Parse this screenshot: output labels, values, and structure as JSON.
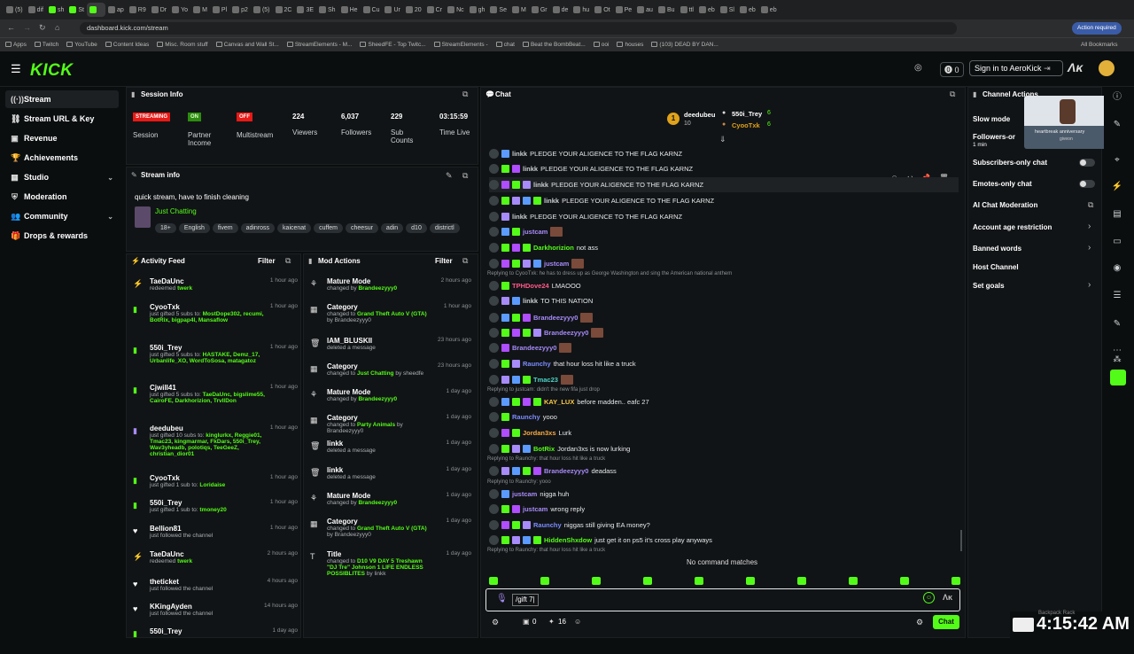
{
  "browser": {
    "tabs": [
      "(5)",
      "dif",
      "sh",
      "St",
      "",
      "ap",
      "R9",
      "Dr",
      "Yo",
      "M",
      "Pl",
      "p2",
      "(5)",
      "2C",
      "3E",
      "Sh",
      "He",
      "Cu",
      "Ur",
      "20",
      "Cr",
      "Nc",
      "gh",
      "Se",
      "M",
      "Gr",
      "de",
      "hu",
      "Ot",
      "Pe",
      "au",
      "Bu",
      "ttl",
      "eb",
      "Sl",
      "eb",
      "eb"
    ],
    "url": "dashboard.kick.com/stream",
    "action_required": "Action required",
    "bookmarks": [
      "Apps",
      "Twitch",
      "YouTube",
      "Content Ideas",
      "Misc. Room stuff",
      "Canvas and Wall St...",
      "StreamElements - M...",
      "SheedFE - Top Twitc...",
      "StreamElements -",
      "chat",
      "Beat the BombBeat...",
      "ooi",
      "houses",
      "(103) DEAD BY DAN..."
    ],
    "all_bookmarks": "All Bookmarks"
  },
  "header": {
    "logo": "KICK",
    "notifications_count": "0",
    "signin_label": "Sign in to AeroKick"
  },
  "sidebar": {
    "items": [
      {
        "label": "Stream",
        "icon": "broadcast-icon"
      },
      {
        "label": "Stream URL & Key",
        "icon": "link-icon"
      },
      {
        "label": "Revenue",
        "icon": "revenue-icon"
      },
      {
        "label": "Achievements",
        "icon": "trophy-icon"
      },
      {
        "label": "Studio",
        "icon": "studio-icon"
      },
      {
        "label": "Moderation",
        "icon": "shield-icon"
      },
      {
        "label": "Community",
        "icon": "community-icon"
      },
      {
        "label": "Drops & rewards",
        "icon": "gift-icon"
      }
    ]
  },
  "session": {
    "title": "Session Info",
    "streaming": "STREAMING",
    "session_label": "Session",
    "partner_value": "ON",
    "partner_label": "Partner Income",
    "multistream_value": "OFF",
    "multistream_label": "Multistream",
    "viewers": "224",
    "viewers_label": "Viewers",
    "followers": "6,037",
    "followers_label": "Followers",
    "subs": "229",
    "subs_label": "Sub Counts",
    "time": "03:15:59",
    "time_label": "Time Live"
  },
  "stream_info": {
    "title": "Stream info",
    "stream_title": "quick stream, have to finish cleaning",
    "category": "Just Chatting",
    "tags": [
      "18+",
      "English",
      "fivem",
      "adinross",
      "kaicenat",
      "cuffem",
      "cheesur",
      "adin",
      "d10",
      "districtl"
    ]
  },
  "activity": {
    "title": "Activity Feed",
    "filter": "Filter",
    "items": [
      {
        "name": "TaeDaUnc",
        "text": "redeemed",
        "highlight": "twerk",
        "time": "1 hour ago"
      },
      {
        "name": "CyooTxk",
        "text": "just gifted 5 subs to:",
        "highlight": "MostDope302, recumi, BotRix, bigpap4l, Mansaflow",
        "time": "1 hour ago"
      },
      {
        "name": "550i_Trey",
        "text": "just gifted 5 subs to:",
        "highlight": "HASTAKE, Demz_17, Urbanlife_XO, WordToSosa, matagatoz",
        "time": "1 hour ago"
      },
      {
        "name": "Cjwill41",
        "text": "just gifted 5 subs to:",
        "highlight": "TaeDaUnc, bigslime55, CairoFE, Darkhorizion, TrvllDon",
        "time": "1 hour ago"
      },
      {
        "name": "deedubeu",
        "text": "just gifted 10 subs to:",
        "highlight": "kinglurkx, Reggie01, Tmac23, kingmarmar, FkDars, 550i_Trey, Wav3yheadb, polotiqs, TeeGeeZ, christian_dior01",
        "time": "1 hour ago"
      },
      {
        "name": "CyooTxk",
        "text": "just gifted 1 sub to:",
        "highlight": "Loridaise",
        "time": "1 hour ago"
      },
      {
        "name": "550i_Trey",
        "text": "just gifted 1 sub to:",
        "highlight": "tmoney20",
        "time": "1 hour ago"
      },
      {
        "name": "Bellion81",
        "text": "just followed the channel",
        "highlight": "",
        "time": "1 hour ago"
      },
      {
        "name": "TaeDaUnc",
        "text": "redeemed",
        "highlight": "twerk",
        "time": "2 hours ago"
      },
      {
        "name": "theticket",
        "text": "just followed the channel",
        "highlight": "",
        "time": "4 hours ago"
      },
      {
        "name": "KKingAyden",
        "text": "just followed the channel",
        "highlight": "",
        "time": "14 hours ago"
      },
      {
        "name": "550i_Trey",
        "text": "",
        "highlight": "",
        "time": "1 day ago"
      }
    ]
  },
  "mod": {
    "title": "Mod Actions",
    "filter": "Filter",
    "items": [
      {
        "title": "Mature Mode",
        "line": "changed by",
        "who": "Brandeezyyy0",
        "extra": "",
        "time": "2 hours ago"
      },
      {
        "title": "Category",
        "line": "changed to",
        "who": "Grand Theft Auto V (GTA)",
        "extra": "by Brandeezyyy0",
        "time": "1 hour ago"
      },
      {
        "title": "IAM_BLUSKII",
        "line": "deleted a message",
        "who": "",
        "extra": "",
        "time": "23 hours ago"
      },
      {
        "title": "Category",
        "line": "changed to",
        "who": "Just Chatting",
        "extra": "by sheedfe",
        "time": "23 hours ago"
      },
      {
        "title": "Mature Mode",
        "line": "changed by",
        "who": "Brandeezyyy0",
        "extra": "",
        "time": "1 day ago"
      },
      {
        "title": "Category",
        "line": "changed to",
        "who": "Party Animals",
        "extra": "by Brandeezyyy0",
        "time": "1 day ago"
      },
      {
        "title": "linkk",
        "line": "deleted a message",
        "who": "",
        "extra": "",
        "time": "1 day ago"
      },
      {
        "title": "linkk",
        "line": "deleted a message",
        "who": "",
        "extra": "",
        "time": "1 day ago"
      },
      {
        "title": "Mature Mode",
        "line": "changed by",
        "who": "Brandeezyyy0",
        "extra": "",
        "time": "1 day ago"
      },
      {
        "title": "Category",
        "line": "changed to",
        "who": "Grand Theft Auto V (GTA)",
        "extra": "by Brandeezyyy0",
        "time": "1 day ago"
      },
      {
        "title": "Title",
        "line": "changed to",
        "who": "D10 V9 DAY 5 Treshawn \"DJ Tre\" Johnson 1 LIFE ENDLESS POSSIBLITES",
        "extra": "by linkk",
        "time": "1 day ago"
      }
    ]
  },
  "chat": {
    "title": "Chat",
    "top_gifter": "deedubeu",
    "top_gifter_count": "10",
    "gifter2": "550i_Trey",
    "gifter2_count": "6",
    "gifter3": "CyooTxk",
    "gifter3_count": "6",
    "messages": [
      {
        "user": "linkk",
        "color": "#c9cdd0",
        "text": "PLEDGE YOUR ALIGENCE TO THE FLAG KARNZ"
      },
      {
        "user": "linkk",
        "color": "#c9cdd0",
        "text": "PLEDGE YOUR ALIGENCE TO THE FLAG KARNZ"
      },
      {
        "user": "linkk",
        "color": "#c9cdd0",
        "text": "PLEDGE YOUR ALIGENCE TO THE FLAG KARNZ"
      },
      {
        "user": "linkk",
        "color": "#c9cdd0",
        "text": "PLEDGE YOUR ALIGENCE TO THE FLAG KARNZ"
      },
      {
        "user": "linkk",
        "color": "#c9cdd0",
        "text": "PLEDGE YOUR ALIGENCE TO THE FLAG KARNZ"
      },
      {
        "user": "justcam",
        "color": "#a78bfa",
        "text": ""
      },
      {
        "user": "Darkhorizion",
        "color": "#53fc18",
        "text": "not ass"
      },
      {
        "user": "justcam",
        "color": "#a78bfa",
        "text": ""
      },
      {
        "user": "TPHDove24",
        "color": "#ff5a8a",
        "text": "LMAOOO"
      },
      {
        "user": "linkk",
        "color": "#c9cdd0",
        "text": "TO THIS NATION"
      },
      {
        "user": "Brandeezyyy0",
        "color": "#a78bfa",
        "text": ""
      },
      {
        "user": "Brandeezyyy0",
        "color": "#a78bfa",
        "text": ""
      },
      {
        "user": "Brandeezyyy0",
        "color": "#a78bfa",
        "text": ""
      },
      {
        "user": "Raunchy",
        "color": "#7c8cff",
        "text": "that hour loss hit like a truck"
      },
      {
        "user": "Tmac23",
        "color": "#4fd1c5",
        "text": ""
      },
      {
        "user": "KAY_LUX",
        "color": "#f6c945",
        "text": "before madden.. eafc 27"
      },
      {
        "user": "Raunchy",
        "color": "#7c8cff",
        "text": "yooo"
      },
      {
        "user": "Jordan3xs",
        "color": "#f6a945",
        "text": "Lurk"
      },
      {
        "user": "BotRix",
        "color": "#53fc18",
        "text": "Jordan3xs is now lurking"
      },
      {
        "user": "Brandeezyyy0",
        "color": "#a78bfa",
        "text": "deadass"
      },
      {
        "user": "justcam",
        "color": "#a78bfa",
        "text": "nigga huh"
      },
      {
        "user": "justcam",
        "color": "#a78bfa",
        "text": "wrong reply"
      },
      {
        "user": "Raunchy",
        "color": "#7c8cff",
        "text": "niggas still giving EA money?"
      },
      {
        "user": "HiddenShxdow",
        "color": "#53fc18",
        "text": "just get it on ps5 it's cross play anyways"
      }
    ],
    "replies": [
      "Replying to CyooTxk: he has to dress up as George Washington and sing the American national anthem",
      "Replying to justcam: didn't the new fifa just drop",
      "Replying to Raunchy: that hour loss hit like a truck",
      "Replying to Raunchy: yooo",
      "Replying to Raunchy: that hour loss hit like a truck"
    ],
    "no_matches": "No command matches",
    "input_value": "/gift 7|",
    "points": "0",
    "kicks": "16",
    "send_label": "Chat"
  },
  "channel_actions": {
    "title": "Channel Actions",
    "slow_mode": "Slow mode",
    "followers_only": "Followers-or",
    "followers_min": "1 min",
    "subs_only": "Subscribers-only chat",
    "emotes_only": "Emotes-only chat",
    "ai_mod": "AI Chat Moderation",
    "age_restriction": "Account age restriction",
    "banned_words": "Banned words",
    "host_channel": "Host Channel",
    "set_goals": "Set goals",
    "preview_caption": "heartbreak anniversary",
    "preview_sub": "giveon"
  },
  "overlay": {
    "clock": "4:15:42 AM",
    "tag": "Backpack Rack"
  },
  "colors": {
    "accent": "#53fc18",
    "streaming": "#e91916",
    "on": "#53fc18",
    "off": "#e91916"
  }
}
